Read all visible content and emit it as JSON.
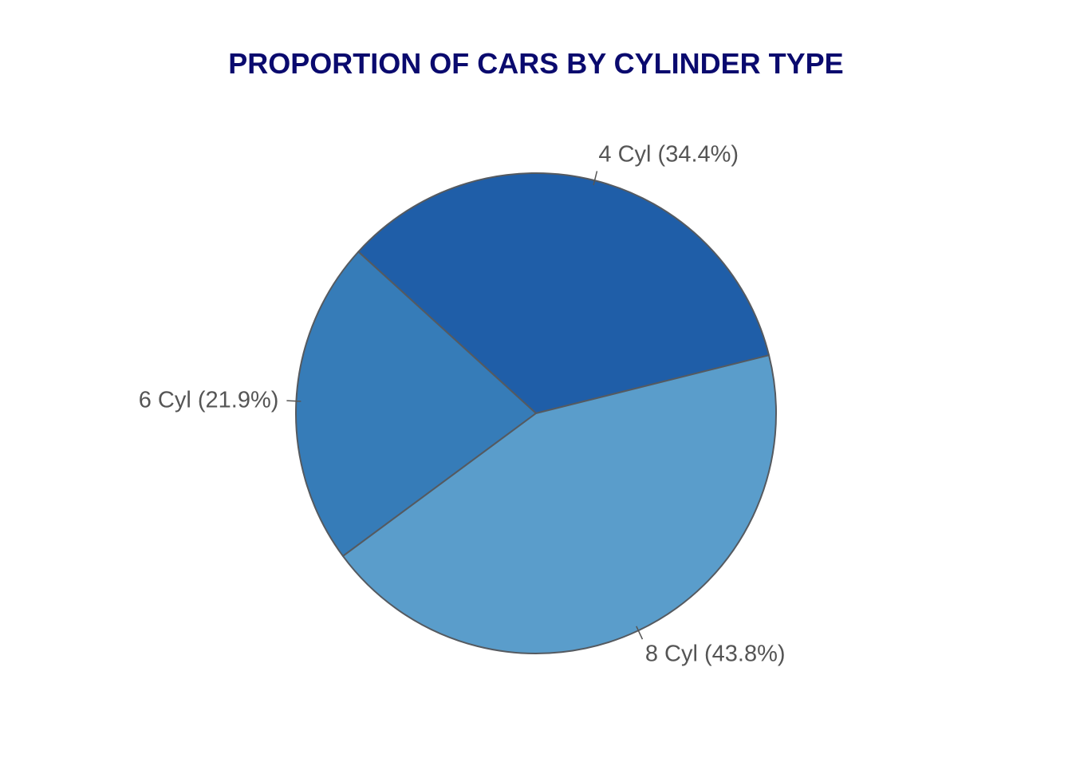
{
  "chart_data": {
    "type": "pie",
    "title": "PROPORTION OF CARS BY CYLINDER TYPE",
    "start_angle_deg": 14,
    "direction": "counterclockwise",
    "slices": [
      {
        "name": "4 Cyl",
        "value": 34.4,
        "label": "4 Cyl (34.4%)",
        "color": "#1f5ea8"
      },
      {
        "name": "6 Cyl",
        "value": 21.9,
        "label": "6 Cyl (21.9%)",
        "color": "#367cb8"
      },
      {
        "name": "8 Cyl",
        "value": 43.8,
        "label": "8 Cyl (43.8%)",
        "color": "#5a9dcb"
      }
    ],
    "colors": {
      "title": "#0a0a6e",
      "label_text": "#555555",
      "slice_border": "#555a60"
    }
  }
}
